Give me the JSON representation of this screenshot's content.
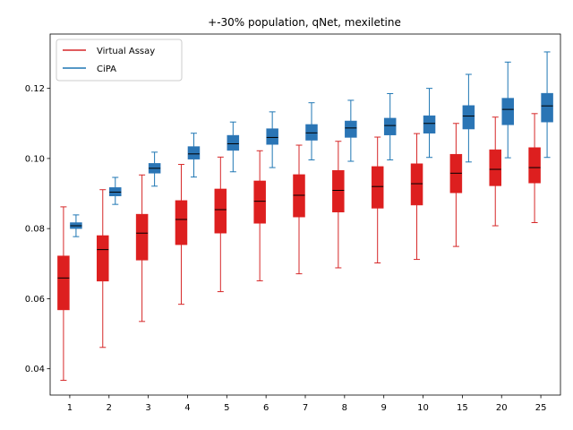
{
  "chart_data": {
    "type": "box",
    "title": "+-30% population, qNet, mexiletine",
    "xlabel": "",
    "ylabel": "",
    "categories": [
      "1",
      "2",
      "3",
      "4",
      "5",
      "6",
      "7",
      "8",
      "9",
      "10",
      "15",
      "20",
      "25"
    ],
    "ylim": [
      0.0325,
      0.1355
    ],
    "yticks": [
      "0.04",
      "0.06",
      "0.08",
      "0.10",
      "0.12"
    ],
    "legend": {
      "position": "upper-left"
    },
    "series": [
      {
        "name": "Virtual Assay",
        "color": "#d62728",
        "box_fill": "#dd1f1f",
        "boxes": [
          {
            "whisker_low": 0.0367,
            "q1": 0.0568,
            "median": 0.0659,
            "q3": 0.0722,
            "whisker_high": 0.0862
          },
          {
            "whisker_low": 0.0461,
            "q1": 0.065,
            "median": 0.074,
            "q3": 0.078,
            "whisker_high": 0.0911
          },
          {
            "whisker_low": 0.0535,
            "q1": 0.071,
            "median": 0.0787,
            "q3": 0.0841,
            "whisker_high": 0.0953
          },
          {
            "whisker_low": 0.0584,
            "q1": 0.0754,
            "median": 0.0826,
            "q3": 0.088,
            "whisker_high": 0.0983
          },
          {
            "whisker_low": 0.062,
            "q1": 0.0787,
            "median": 0.0854,
            "q3": 0.0913,
            "whisker_high": 0.1004
          },
          {
            "whisker_low": 0.0651,
            "q1": 0.0815,
            "median": 0.0878,
            "q3": 0.0936,
            "whisker_high": 0.1022
          },
          {
            "whisker_low": 0.0671,
            "q1": 0.0833,
            "median": 0.0895,
            "q3": 0.0954,
            "whisker_high": 0.1038
          },
          {
            "whisker_low": 0.0688,
            "q1": 0.0847,
            "median": 0.0909,
            "q3": 0.0966,
            "whisker_high": 0.1049
          },
          {
            "whisker_low": 0.0702,
            "q1": 0.0858,
            "median": 0.092,
            "q3": 0.0977,
            "whisker_high": 0.1061
          },
          {
            "whisker_low": 0.0712,
            "q1": 0.0867,
            "median": 0.0928,
            "q3": 0.0985,
            "whisker_high": 0.1071
          },
          {
            "whisker_low": 0.0749,
            "q1": 0.0902,
            "median": 0.0958,
            "q3": 0.1012,
            "whisker_high": 0.11
          },
          {
            "whisker_low": 0.0808,
            "q1": 0.0922,
            "median": 0.0969,
            "q3": 0.1025,
            "whisker_high": 0.1118
          },
          {
            "whisker_low": 0.0817,
            "q1": 0.093,
            "median": 0.0974,
            "q3": 0.1031,
            "whisker_high": 0.1128
          }
        ]
      },
      {
        "name": "CiPA",
        "color": "#1f77b4",
        "box_fill": "#2a75b5",
        "boxes": [
          {
            "whisker_low": 0.0777,
            "q1": 0.08,
            "median": 0.0808,
            "q3": 0.0817,
            "whisker_high": 0.0839
          },
          {
            "whisker_low": 0.0869,
            "q1": 0.0893,
            "median": 0.0904,
            "q3": 0.0917,
            "whisker_high": 0.0946
          },
          {
            "whisker_low": 0.0921,
            "q1": 0.0958,
            "median": 0.0972,
            "q3": 0.0986,
            "whisker_high": 0.1018
          },
          {
            "whisker_low": 0.0947,
            "q1": 0.0998,
            "median": 0.1013,
            "q3": 0.1034,
            "whisker_high": 0.1072
          },
          {
            "whisker_low": 0.0962,
            "q1": 0.1023,
            "median": 0.1042,
            "q3": 0.1066,
            "whisker_high": 0.1104
          },
          {
            "whisker_low": 0.0974,
            "q1": 0.104,
            "median": 0.106,
            "q3": 0.1085,
            "whisker_high": 0.1133
          },
          {
            "whisker_low": 0.0996,
            "q1": 0.1052,
            "median": 0.1073,
            "q3": 0.1097,
            "whisker_high": 0.1159
          },
          {
            "whisker_low": 0.0992,
            "q1": 0.106,
            "median": 0.1087,
            "q3": 0.1107,
            "whisker_high": 0.1166
          },
          {
            "whisker_low": 0.0996,
            "q1": 0.1067,
            "median": 0.1094,
            "q3": 0.1115,
            "whisker_high": 0.1185
          },
          {
            "whisker_low": 0.1003,
            "q1": 0.1072,
            "median": 0.11,
            "q3": 0.1122,
            "whisker_high": 0.12
          },
          {
            "whisker_low": 0.099,
            "q1": 0.1084,
            "median": 0.1121,
            "q3": 0.1151,
            "whisker_high": 0.124
          },
          {
            "whisker_low": 0.1002,
            "q1": 0.1096,
            "median": 0.114,
            "q3": 0.1172,
            "whisker_high": 0.1275
          },
          {
            "whisker_low": 0.1003,
            "q1": 0.1104,
            "median": 0.115,
            "q3": 0.1186,
            "whisker_high": 0.1304
          }
        ]
      }
    ]
  }
}
